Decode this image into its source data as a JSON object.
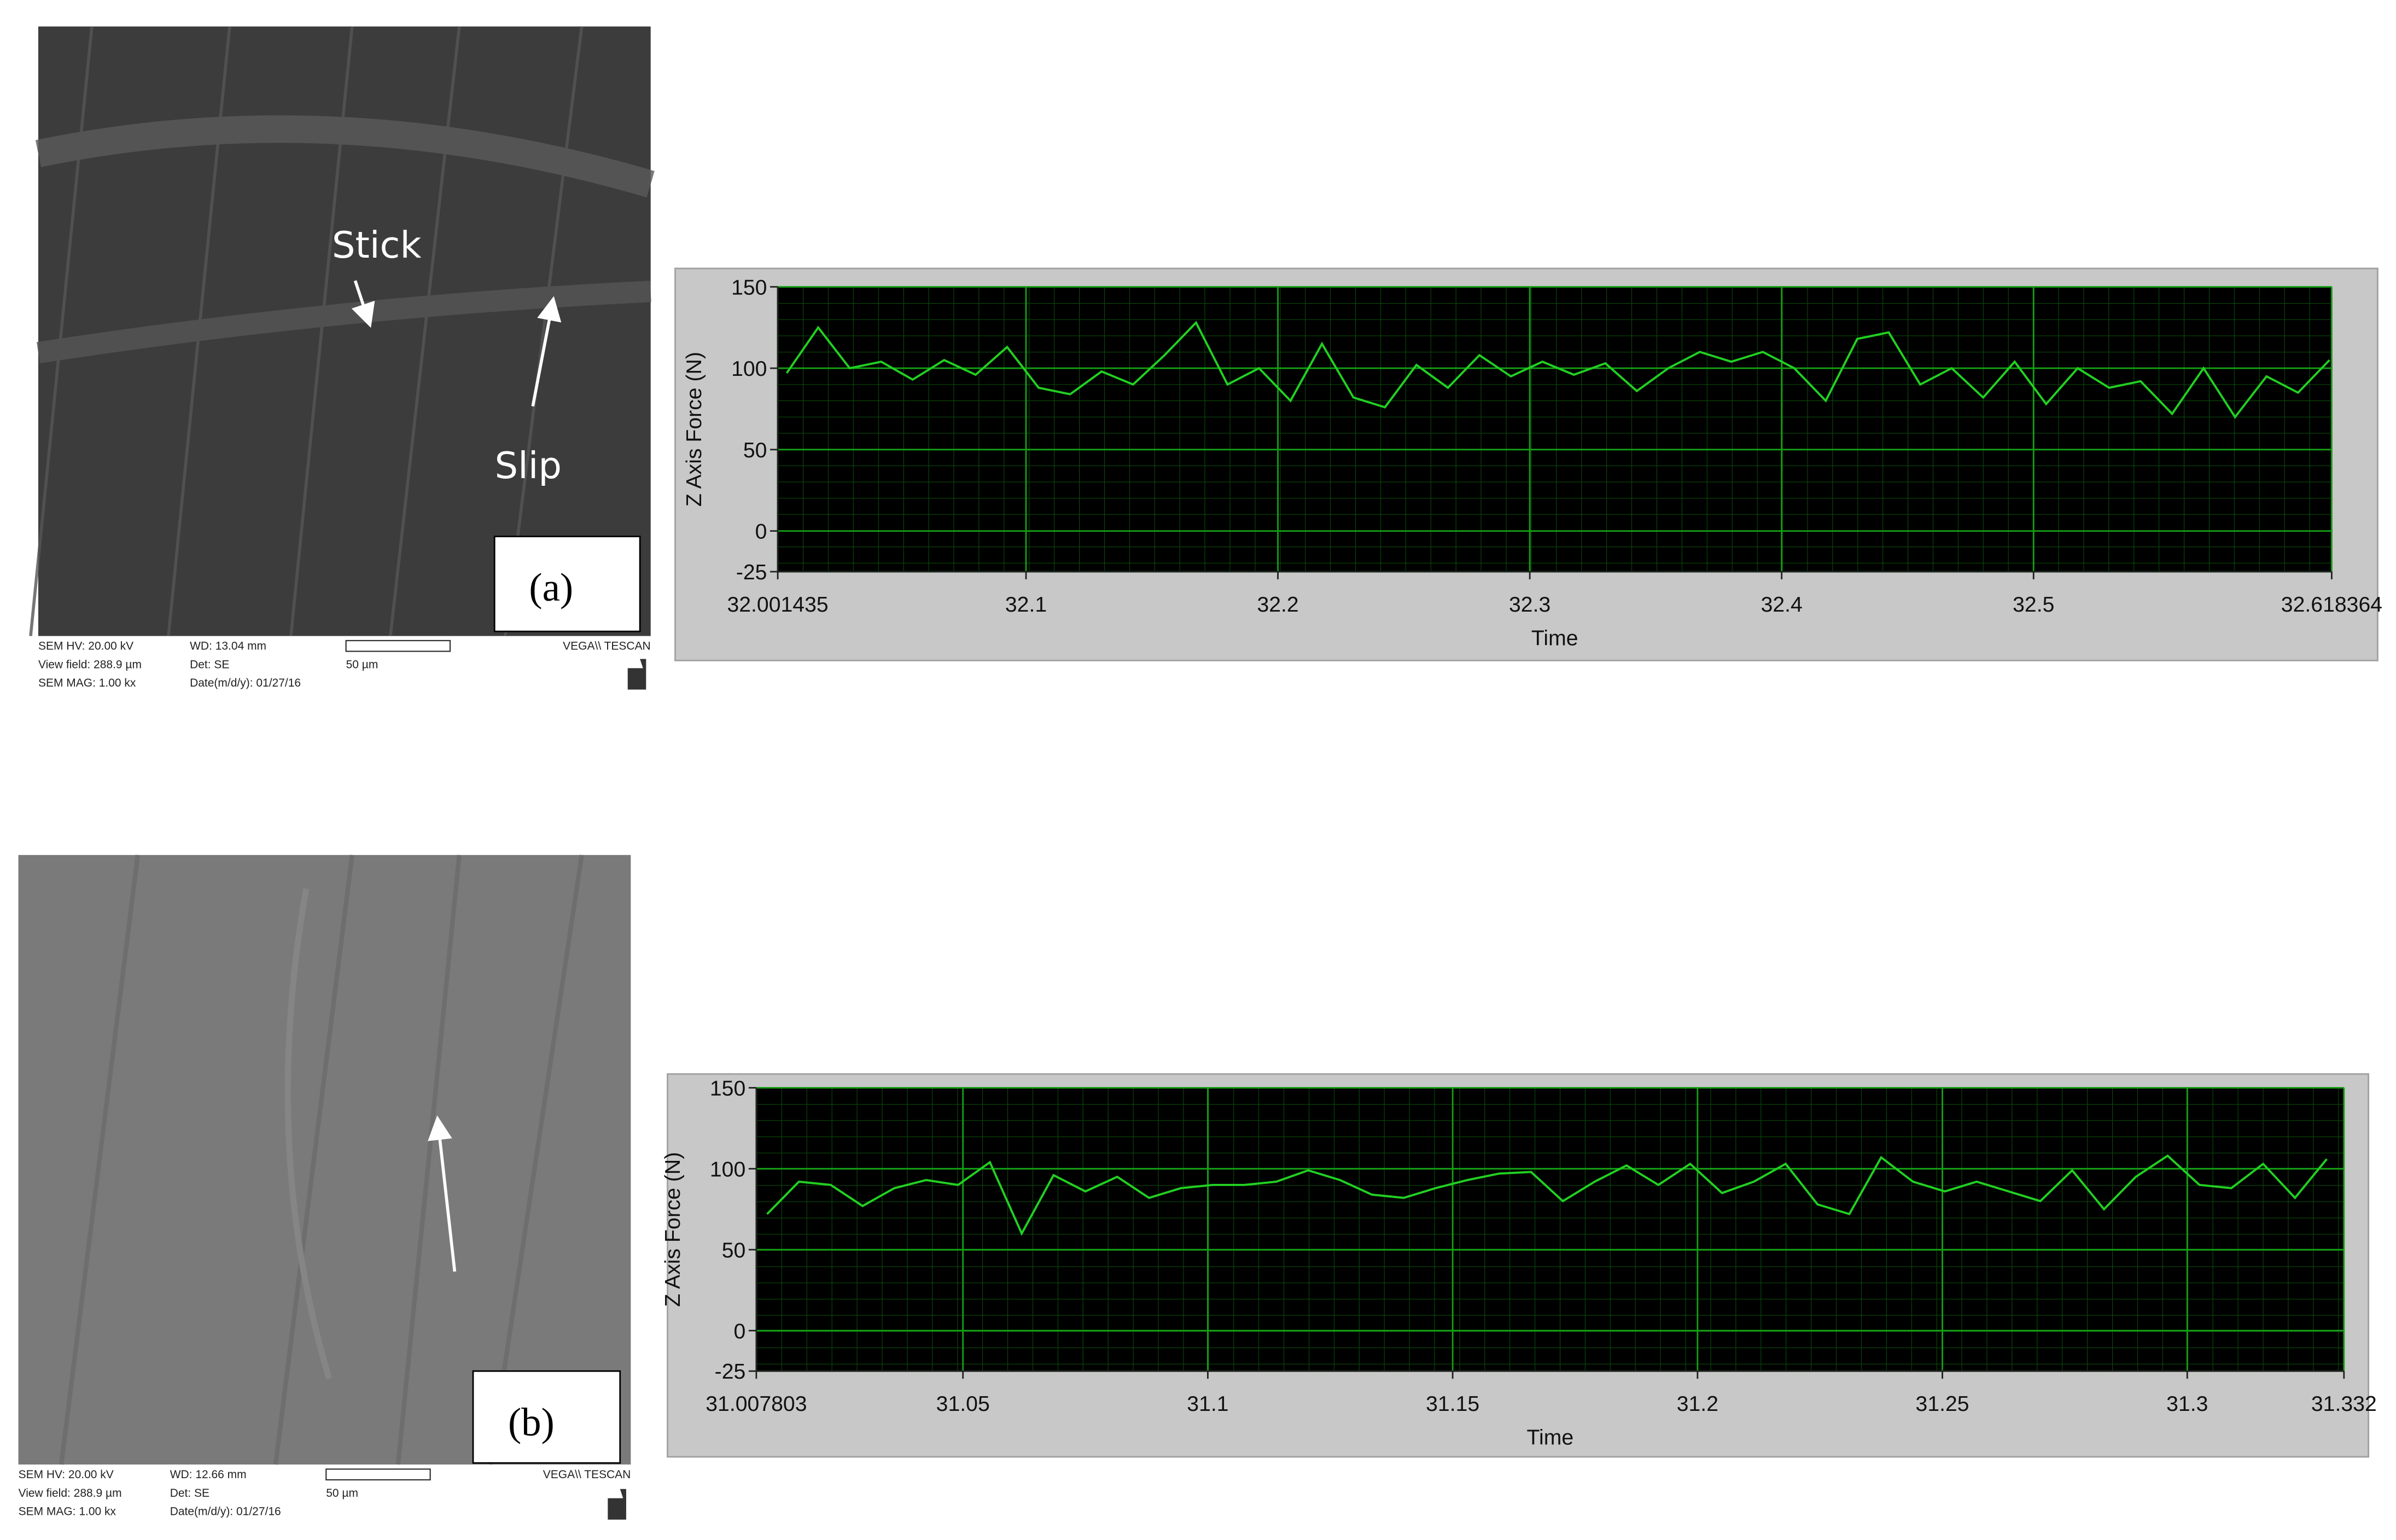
{
  "panels": [
    {
      "label": "(a)",
      "annotations": [
        "Stick",
        "Slip"
      ],
      "sem_info": [
        "SEM HV: 20.00 kV",
        "WD: 13.04 mm",
        "View field: 288.9 µm",
        "Det: SE",
        "SEM MAG: 1.00 kx",
        "Date(m/d/y): 01/27/16",
        "50 µm",
        "VEGA\\\\ TESCAN"
      ]
    },
    {
      "label": "(b)",
      "sem_info": [
        "SEM HV: 20.00 kV",
        "WD: 12.66 mm",
        "View field: 288.9 µm",
        "Det: SE",
        "SEM MAG: 1.00 kx",
        "Date(m/d/y): 01/27/16",
        "50 µm",
        "VEGA\\\\ TESCAN"
      ]
    }
  ],
  "chart_data": [
    {
      "type": "line",
      "x_label": "Time",
      "y_label": "Z Axis Force (N)",
      "color": "#22d022",
      "grid": true,
      "xlim": [
        32.001435,
        32.618364
      ],
      "xticks": [
        32.001435,
        32.1,
        32.2,
        32.3,
        32.4,
        32.5,
        32.618364
      ],
      "ylim": [
        -25,
        150
      ],
      "yticks": [
        -25,
        0,
        50,
        100,
        150
      ],
      "x": [
        32.005,
        32.0175,
        32.03,
        32.0425,
        32.055,
        32.0675,
        32.08,
        32.0925,
        32.105,
        32.1175,
        32.13,
        32.1425,
        32.155,
        32.1675,
        32.18,
        32.1925,
        32.205,
        32.2175,
        32.23,
        32.2425,
        32.255,
        32.2675,
        32.28,
        32.2925,
        32.305,
        32.3175,
        32.33,
        32.3425,
        32.355,
        32.3675,
        32.38,
        32.3925,
        32.405,
        32.4175,
        32.43,
        32.4425,
        32.455,
        32.4675,
        32.48,
        32.4925,
        32.505,
        32.5175,
        32.53,
        32.5425,
        32.555,
        32.5675,
        32.58,
        32.5925,
        32.605,
        32.6175
      ],
      "values": [
        97,
        125,
        100,
        104,
        93,
        105,
        96,
        113,
        88,
        84,
        98,
        90,
        108,
        128,
        90,
        100,
        80,
        115,
        82,
        76,
        102,
        88,
        108,
        95,
        104,
        96,
        103,
        86,
        100,
        110,
        104,
        110,
        100,
        80,
        118,
        122,
        90,
        100,
        82,
        104,
        78,
        100,
        88,
        92,
        72,
        100,
        70,
        95,
        85,
        105
      ]
    },
    {
      "type": "line",
      "x_label": "Time",
      "y_label": "Z Axis Force (N)",
      "color": "#22d022",
      "grid": true,
      "xlim": [
        31.007803,
        31.332
      ],
      "xticks": [
        31.007803,
        31.05,
        31.1,
        31.15,
        31.2,
        31.25,
        31.3,
        31.332
      ],
      "ylim": [
        -25,
        150
      ],
      "yticks": [
        -25,
        0,
        50,
        100,
        150
      ],
      "x": [
        31.01,
        31.0165,
        31.023,
        31.0295,
        31.036,
        31.0425,
        31.049,
        31.0555,
        31.062,
        31.0685,
        31.075,
        31.0815,
        31.088,
        31.0945,
        31.101,
        31.1075,
        31.114,
        31.1205,
        31.127,
        31.1335,
        31.14,
        31.1465,
        31.153,
        31.1595,
        31.166,
        31.1725,
        31.179,
        31.1855,
        31.192,
        31.1985,
        31.205,
        31.2115,
        31.218,
        31.2245,
        31.231,
        31.2375,
        31.244,
        31.2505,
        31.257,
        31.2635,
        31.27,
        31.2765,
        31.283,
        31.2895,
        31.296,
        31.3025,
        31.309,
        31.3155,
        31.322,
        31.3285
      ],
      "values": [
        72,
        92,
        90,
        77,
        88,
        93,
        90,
        104,
        60,
        96,
        86,
        95,
        82,
        88,
        90,
        90,
        92,
        99,
        93,
        84,
        82,
        88,
        93,
        97,
        98,
        80,
        92,
        102,
        90,
        103,
        85,
        92,
        103,
        78,
        72,
        107,
        92,
        86,
        92,
        86,
        80,
        99,
        75,
        95,
        108,
        90,
        88,
        103,
        82,
        106
      ]
    }
  ]
}
